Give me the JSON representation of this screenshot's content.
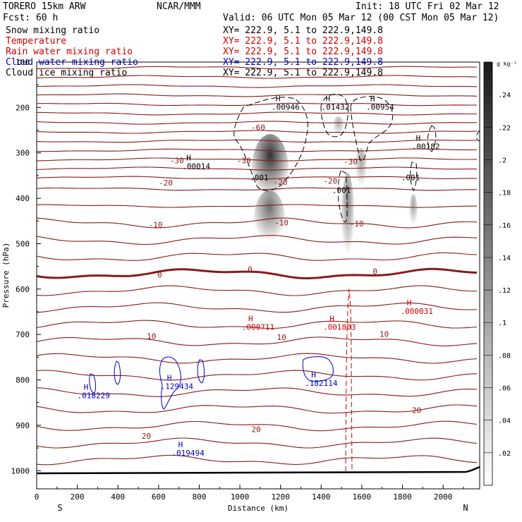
{
  "header": {
    "model": "TORERO  15km ARW",
    "center": "NCAR/MMM",
    "init": "Init: 18 UTC Fri 02 Mar 12",
    "fcst": "Fcst:   60 h",
    "valid": "Valid: 06 UTC Mon 05 Mar 12 (00 CST Mon 05 Mar 12)"
  },
  "legend": [
    {
      "name": "Snow mixing ratio",
      "xy": "XY= 222.9,  5.1 to 222.9,149.8",
      "color": "#000000"
    },
    {
      "name": "Temperature",
      "xy": "XY= 222.9,  5.1 to 222.9,149.8",
      "color": "#cc0000"
    },
    {
      "name": "Rain water mixing ratio",
      "xy": "XY= 222.9,  5.1 to 222.9,149.8",
      "color": "#cc0000"
    },
    {
      "name": "Cloud water mixing ratio",
      "xy": "XY= 222.9,  5.1 to 222.9,149.8",
      "color": "#0000cc"
    },
    {
      "name": "Cloud ice mixing ratio",
      "xy": "XY= 222.9,  5.1 to 222.9,149.8",
      "color": "#000000"
    }
  ],
  "chart_data": {
    "type": "cross-section",
    "xlabel": "Distance (km)",
    "ylabel": "Pressure (hPa)",
    "xlim": [
      0,
      2180
    ],
    "ylim": [
      1040,
      100
    ],
    "xticks": [
      0,
      200,
      400,
      600,
      800,
      1000,
      1200,
      1400,
      1600,
      1800,
      2000
    ],
    "xtick_labels": [
      "0",
      "200",
      "400",
      "600",
      "800",
      "1000",
      "1200",
      "1400",
      "1600",
      "1800",
      "2000"
    ],
    "yticks": [
      100,
      200,
      300,
      400,
      500,
      600,
      700,
      800,
      900,
      1000
    ],
    "ytick_labels": [
      "100",
      "200",
      "300",
      "400",
      "500",
      "600",
      "700",
      "800",
      "900",
      "1000"
    ],
    "left_end": "S",
    "right_end": "N",
    "colorbar": {
      "unit": "g kg⁻¹",
      "values": [
        0.24,
        0.22,
        0.2,
        0.18,
        0.16,
        0.14,
        0.12,
        0.1,
        0.08,
        0.06,
        0.04,
        0.02
      ],
      "labels": [
        ".24",
        ".22",
        ".2",
        ".18",
        ".16",
        ".14",
        ".12",
        ".1",
        ".08",
        ".06",
        ".04",
        ".02"
      ]
    },
    "isotherms": [
      {
        "label": "-60",
        "x": 1090,
        "p": 250
      },
      {
        "label": "-30",
        "x": 690,
        "p": 323
      },
      {
        "label": "-30",
        "x": 1020,
        "p": 323
      },
      {
        "label": "-30",
        "x": 1545,
        "p": 325
      },
      {
        "label": "-20",
        "x": 635,
        "p": 372
      },
      {
        "label": "-20",
        "x": 1200,
        "p": 370
      },
      {
        "label": "-20",
        "x": 1445,
        "p": 368
      },
      {
        "label": "-10",
        "x": 585,
        "p": 464
      },
      {
        "label": "-10",
        "x": 1205,
        "p": 460
      },
      {
        "label": "-10",
        "x": 1575,
        "p": 462
      },
      {
        "label": "0",
        "x": 605,
        "p": 575
      },
      {
        "label": "0",
        "x": 1050,
        "p": 563
      },
      {
        "label": "0",
        "x": 1665,
        "p": 567
      },
      {
        "label": "10",
        "x": 565,
        "p": 710
      },
      {
        "label": "10",
        "x": 1205,
        "p": 712
      },
      {
        "label": "10",
        "x": 1710,
        "p": 705
      },
      {
        "label": "20",
        "x": 540,
        "p": 930
      },
      {
        "label": "20",
        "x": 1080,
        "p": 915
      },
      {
        "label": "20",
        "x": 1870,
        "p": 873
      }
    ],
    "maxima": [
      {
        "label": ".00014",
        "x": 785,
        "p": 335,
        "kind": "ice"
      },
      {
        "label": ".00946",
        "x": 1225,
        "p": 205,
        "kind": "ice"
      },
      {
        "label": ".01432",
        "x": 1470,
        "p": 205,
        "kind": "ice"
      },
      {
        "label": ".00954",
        "x": 1690,
        "p": 205,
        "kind": "ice"
      },
      {
        "label": ".00182",
        "x": 1915,
        "p": 292,
        "kind": "ice"
      },
      {
        "label": ".001",
        "x": 1095,
        "p": 360,
        "kind": "ice"
      },
      {
        "label": ".001",
        "x": 1500,
        "p": 388,
        "kind": "ice"
      },
      {
        "label": ".001",
        "x": 1840,
        "p": 360,
        "kind": "ice"
      },
      {
        "label": ".000711",
        "x": 1090,
        "p": 690,
        "kind": "rain"
      },
      {
        "label": ".001803",
        "x": 1490,
        "p": 690,
        "kind": "rain"
      },
      {
        "label": ".000031",
        "x": 1870,
        "p": 655,
        "kind": "rain"
      },
      {
        "label": ".018229",
        "x": 280,
        "p": 840,
        "kind": "cloud"
      },
      {
        "label": ".129434",
        "x": 690,
        "p": 820,
        "kind": "cloud"
      },
      {
        "label": ".182114",
        "x": 1400,
        "p": 813,
        "kind": "cloud"
      },
      {
        "label": ".019494",
        "x": 745,
        "p": 967,
        "kind": "cloud"
      }
    ],
    "snow_max_g_per_kg": 0.24,
    "snow_core_x": 1160
  }
}
